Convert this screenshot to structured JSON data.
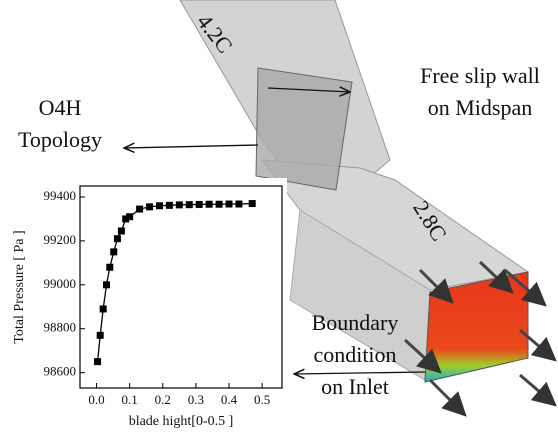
{
  "chart_data": {
    "type": "line",
    "annotations": [
      "4.2C",
      "2.8C",
      "Free slip wall",
      "on Midspan",
      "O4H",
      "Topology",
      "Boundary",
      "condition",
      "on Inlet"
    ],
    "xlabel": "blade hight[0-0.5 ]",
    "ylabel": "Total Pressure [ Pa ]",
    "x": [
      0.003,
      0.011,
      0.02,
      0.03,
      0.04,
      0.052,
      0.063,
      0.075,
      0.088,
      0.1,
      0.13,
      0.16,
      0.19,
      0.22,
      0.25,
      0.28,
      0.31,
      0.34,
      0.37,
      0.4,
      0.43,
      0.47
    ],
    "values": [
      98650,
      98770,
      98890,
      99000,
      99080,
      99150,
      99210,
      99245,
      99300,
      99310,
      99345,
      99355,
      99360,
      99362,
      99364,
      99365,
      99366,
      99367,
      99367,
      99368,
      99368,
      99370
    ],
    "color": "#000000",
    "marker": "square",
    "xlim": [
      -0.05,
      0.56
    ],
    "ylim": [
      98530,
      99450
    ],
    "xticks": [
      {
        "value": 0,
        "label": "0.0"
      },
      0.1,
      0.2,
      0.3,
      0.4,
      0.5
    ],
    "yticks": [
      98600,
      98800,
      99000,
      99200,
      99400
    ]
  }
}
